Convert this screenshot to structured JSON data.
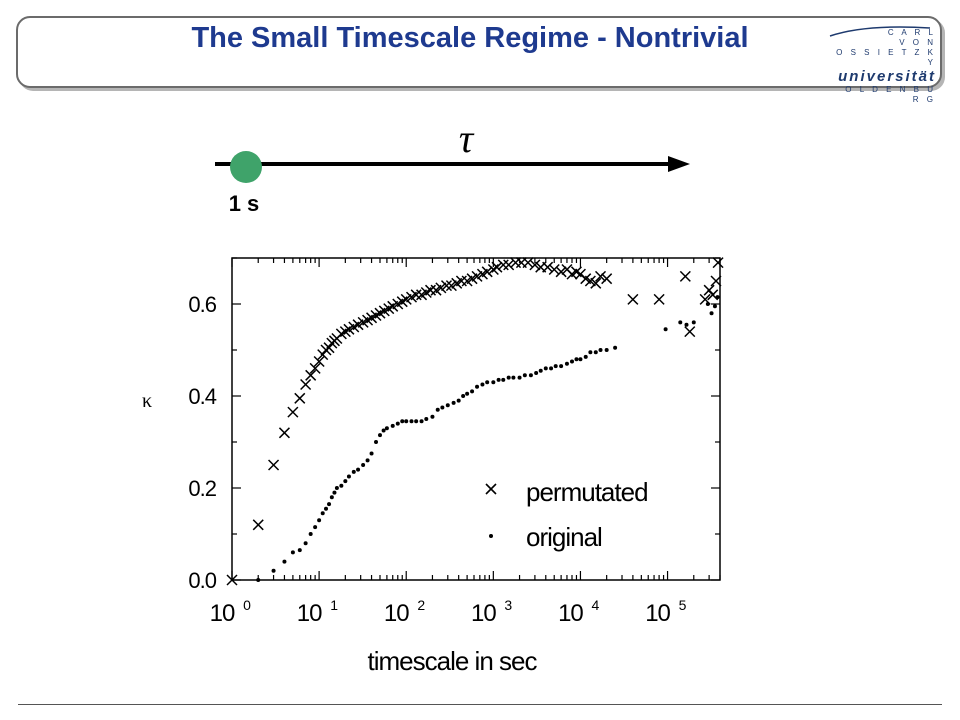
{
  "slide": {
    "title": "The Small Timescale Regime - Nontrivial",
    "logo": {
      "line1": "C A R L",
      "line2": "V O N",
      "line3": "O S S I E T Z K Y",
      "name": "universität",
      "city": "O L D E N B U R G"
    }
  },
  "timeline": {
    "tau_symbol": "τ",
    "marker_label": "1 s",
    "marker_color": "#3fa36a"
  },
  "chart_data": {
    "type": "scatter",
    "xlabel": "timescale in sec",
    "ylabel": "κ",
    "x_scale": "log",
    "xlim": [
      1,
      400000
    ],
    "ylim": [
      0,
      0.7
    ],
    "x_ticks": [
      {
        "base": "10",
        "exp": "0",
        "value": 1
      },
      {
        "base": "10",
        "exp": "1",
        "value": 10
      },
      {
        "base": "10",
        "exp": "2",
        "value": 100
      },
      {
        "base": "10",
        "exp": "3",
        "value": 1000
      },
      {
        "base": "10",
        "exp": "4",
        "value": 10000
      },
      {
        "base": "10",
        "exp": "5",
        "value": 100000
      }
    ],
    "y_ticks": [
      {
        "label": "0.0",
        "value": 0
      },
      {
        "label": "0.2",
        "value": 0.2
      },
      {
        "label": "0.4",
        "value": 0.4
      },
      {
        "label": "0.6",
        "value": 0.6
      }
    ],
    "legend_position": "bottom-right",
    "series": [
      {
        "name": "permutated",
        "marker": "x",
        "points": [
          [
            1,
            0.0
          ],
          [
            2,
            0.12
          ],
          [
            3,
            0.25
          ],
          [
            4,
            0.32
          ],
          [
            5,
            0.365
          ],
          [
            6,
            0.395
          ],
          [
            7,
            0.425
          ],
          [
            8,
            0.445
          ],
          [
            9,
            0.46
          ],
          [
            10,
            0.475
          ],
          [
            11,
            0.49
          ],
          [
            12,
            0.5
          ],
          [
            13,
            0.505
          ],
          [
            14,
            0.515
          ],
          [
            15,
            0.52
          ],
          [
            16,
            0.525
          ],
          [
            18,
            0.535
          ],
          [
            20,
            0.54
          ],
          [
            22,
            0.545
          ],
          [
            25,
            0.55
          ],
          [
            28,
            0.555
          ],
          [
            32,
            0.56
          ],
          [
            36,
            0.565
          ],
          [
            40,
            0.57
          ],
          [
            45,
            0.575
          ],
          [
            50,
            0.58
          ],
          [
            56,
            0.585
          ],
          [
            63,
            0.59
          ],
          [
            70,
            0.595
          ],
          [
            80,
            0.6
          ],
          [
            90,
            0.605
          ],
          [
            100,
            0.61
          ],
          [
            115,
            0.615
          ],
          [
            130,
            0.62
          ],
          [
            150,
            0.62
          ],
          [
            170,
            0.625
          ],
          [
            190,
            0.63
          ],
          [
            220,
            0.63
          ],
          [
            250,
            0.635
          ],
          [
            290,
            0.64
          ],
          [
            330,
            0.64
          ],
          [
            380,
            0.645
          ],
          [
            430,
            0.65
          ],
          [
            500,
            0.65
          ],
          [
            570,
            0.655
          ],
          [
            650,
            0.66
          ],
          [
            750,
            0.665
          ],
          [
            850,
            0.67
          ],
          [
            1000,
            0.675
          ],
          [
            1100,
            0.68
          ],
          [
            1300,
            0.685
          ],
          [
            1500,
            0.685
          ],
          [
            1800,
            0.69
          ],
          [
            2100,
            0.69
          ],
          [
            2500,
            0.69
          ],
          [
            3000,
            0.685
          ],
          [
            3500,
            0.68
          ],
          [
            4200,
            0.68
          ],
          [
            5000,
            0.675
          ],
          [
            6000,
            0.67
          ],
          [
            7000,
            0.675
          ],
          [
            8000,
            0.665
          ],
          [
            9000,
            0.67
          ],
          [
            10000,
            0.665
          ],
          [
            11500,
            0.655
          ],
          [
            13000,
            0.65
          ],
          [
            15000,
            0.645
          ],
          [
            17000,
            0.66
          ],
          [
            20000,
            0.655
          ],
          [
            40000,
            0.61
          ],
          [
            80000,
            0.61
          ],
          [
            160000,
            0.66
          ],
          [
            180000,
            0.54
          ],
          [
            270000,
            0.61
          ],
          [
            300000,
            0.63
          ],
          [
            330000,
            0.62
          ],
          [
            360000,
            0.65
          ],
          [
            380000,
            0.69
          ]
        ]
      },
      {
        "name": "original",
        "marker": "dot",
        "points": [
          [
            2,
            0.0
          ],
          [
            3,
            0.02
          ],
          [
            4,
            0.04
          ],
          [
            5,
            0.06
          ],
          [
            6,
            0.065
          ],
          [
            7,
            0.08
          ],
          [
            8,
            0.1
          ],
          [
            9,
            0.115
          ],
          [
            10,
            0.13
          ],
          [
            11,
            0.145
          ],
          [
            12,
            0.155
          ],
          [
            13,
            0.165
          ],
          [
            14,
            0.18
          ],
          [
            15,
            0.19
          ],
          [
            16,
            0.2
          ],
          [
            18,
            0.205
          ],
          [
            20,
            0.215
          ],
          [
            22,
            0.225
          ],
          [
            25,
            0.235
          ],
          [
            28,
            0.24
          ],
          [
            32,
            0.25
          ],
          [
            36,
            0.26
          ],
          [
            40,
            0.275
          ],
          [
            45,
            0.3
          ],
          [
            50,
            0.315
          ],
          [
            55,
            0.325
          ],
          [
            60,
            0.33
          ],
          [
            70,
            0.335
          ],
          [
            80,
            0.34
          ],
          [
            90,
            0.345
          ],
          [
            100,
            0.345
          ],
          [
            115,
            0.345
          ],
          [
            130,
            0.345
          ],
          [
            150,
            0.345
          ],
          [
            170,
            0.35
          ],
          [
            200,
            0.355
          ],
          [
            230,
            0.37
          ],
          [
            260,
            0.375
          ],
          [
            300,
            0.38
          ],
          [
            350,
            0.385
          ],
          [
            400,
            0.39
          ],
          [
            450,
            0.4
          ],
          [
            500,
            0.405
          ],
          [
            570,
            0.41
          ],
          [
            650,
            0.42
          ],
          [
            750,
            0.425
          ],
          [
            850,
            0.43
          ],
          [
            1000,
            0.43
          ],
          [
            1150,
            0.435
          ],
          [
            1300,
            0.435
          ],
          [
            1500,
            0.44
          ],
          [
            1700,
            0.44
          ],
          [
            2000,
            0.44
          ],
          [
            2300,
            0.445
          ],
          [
            2700,
            0.445
          ],
          [
            3100,
            0.45
          ],
          [
            3500,
            0.455
          ],
          [
            4000,
            0.46
          ],
          [
            4600,
            0.46
          ],
          [
            5200,
            0.465
          ],
          [
            6000,
            0.465
          ],
          [
            7000,
            0.47
          ],
          [
            8000,
            0.475
          ],
          [
            9000,
            0.48
          ],
          [
            10000,
            0.48
          ],
          [
            11500,
            0.485
          ],
          [
            13000,
            0.495
          ],
          [
            15000,
            0.495
          ],
          [
            17000,
            0.5
          ],
          [
            20000,
            0.5
          ],
          [
            25000,
            0.505
          ],
          [
            95000,
            0.545
          ],
          [
            140000,
            0.56
          ],
          [
            165000,
            0.555
          ],
          [
            200000,
            0.56
          ],
          [
            290000,
            0.6
          ],
          [
            320000,
            0.58
          ],
          [
            350000,
            0.595
          ],
          [
            375000,
            0.615
          ]
        ]
      }
    ]
  }
}
